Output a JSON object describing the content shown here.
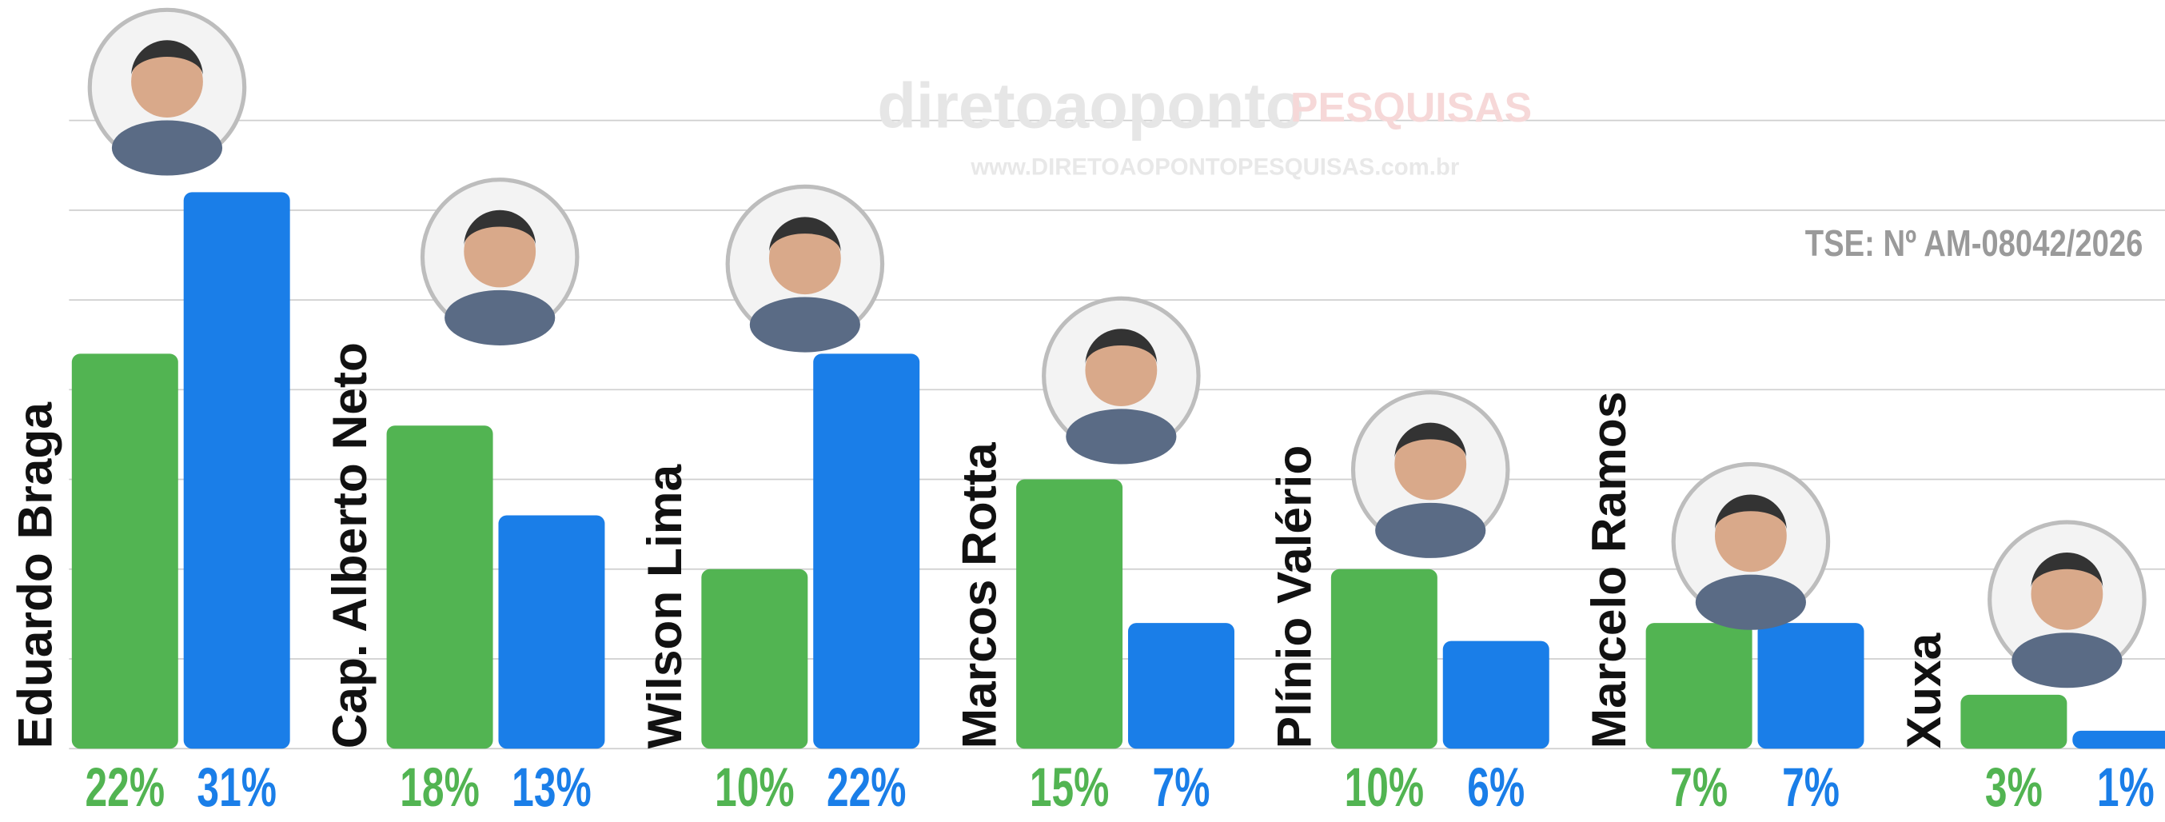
{
  "chart_data": {
    "type": "bar",
    "categories": [
      "Eduardo Braga",
      "Cap. Alberto Neto",
      "Wilson  Lima",
      "Marcos Rotta",
      "Plínio Valério",
      "Marcelo Ramos",
      "Xuxa"
    ],
    "series": [
      {
        "color": "#52b452",
        "values": [
          22,
          18,
          10,
          15,
          10,
          7,
          3
        ],
        "value_labels": [
          "22%",
          "18%",
          "10%",
          "15%",
          "10%",
          "7%",
          "3%"
        ]
      },
      {
        "color": "#1a7ee8",
        "values": [
          31,
          13,
          22,
          7,
          6,
          7,
          1
        ],
        "value_labels": [
          "31%",
          "13%",
          "22%",
          "7%",
          "6%",
          "7%",
          "1%"
        ]
      }
    ],
    "ylim": [
      0,
      41.7
    ],
    "yticks": [
      0,
      5,
      10,
      15,
      20,
      25,
      30,
      35
    ],
    "grid": true,
    "watermark_brand": "diretoaoponto",
    "watermark_tag": "PESQUISAS",
    "watermark_url": "www.DIRETOAOPONTOPESQUISAS.com.br",
    "registration": "TSE: Nº AM-08042/2026"
  }
}
